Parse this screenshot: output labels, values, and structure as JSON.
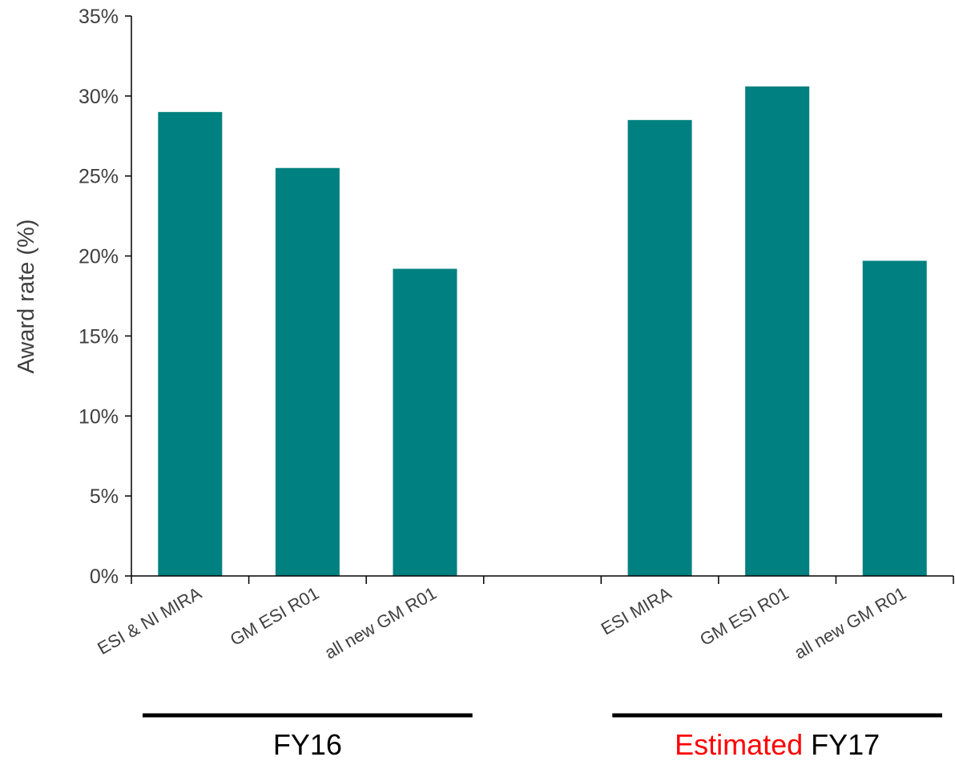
{
  "chart_data": {
    "type": "bar",
    "ylabel": "Award rate (%)",
    "xlabel": "",
    "ylim": [
      0,
      35
    ],
    "ytick_step": 5,
    "ytick_format": "percent",
    "grid": false,
    "bar_color": "#008080",
    "categories": [
      "ESI & NI MIRA",
      "GM ESI R01",
      "all new GM R01",
      "",
      "ESI MIRA",
      "GM ESI R01",
      "all new GM R01"
    ],
    "values": [
      29.0,
      25.5,
      19.2,
      null,
      28.5,
      30.6,
      19.7
    ],
    "groups": [
      {
        "name": "FY16",
        "categories": [
          0,
          1,
          2
        ],
        "segments": [
          {
            "text": "FY16",
            "color": "#000000"
          }
        ]
      },
      {
        "name": "Estimated FY17",
        "categories": [
          4,
          5,
          6
        ],
        "segments": [
          {
            "text": "Estimated",
            "color": "#ff0000"
          },
          {
            "text": " FY17",
            "color": "#000000"
          }
        ]
      }
    ]
  }
}
